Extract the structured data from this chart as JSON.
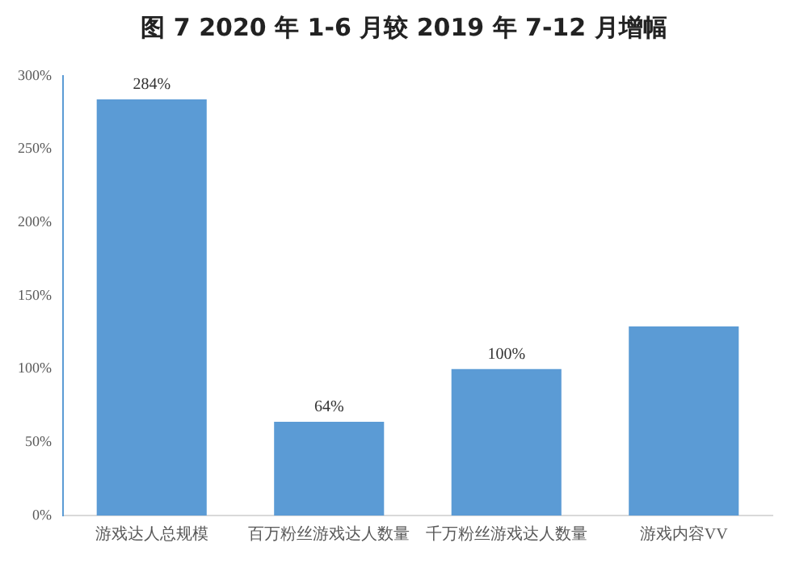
{
  "chart_data": {
    "type": "bar",
    "title": "图 7   2020 年 1-6 月较 2019 年 7-12 月增幅",
    "categories": [
      "游戏达人总规模",
      "百万粉丝游戏达人数量",
      "千万粉丝游戏达人数量",
      "游戏内容VV"
    ],
    "values": [
      284,
      64,
      100,
      129
    ],
    "value_labels": [
      "284%",
      "64%",
      "100%",
      null
    ],
    "color": "#5b9bd5",
    "ylim": [
      0,
      300
    ],
    "yticks": [
      {
        "value": 0,
        "label": "0%"
      },
      {
        "value": 50,
        "label": "50%"
      },
      {
        "value": 100,
        "label": "100%"
      },
      {
        "value": 150,
        "label": "150%"
      },
      {
        "value": 200,
        "label": "200%"
      },
      {
        "value": 250,
        "label": "250%"
      },
      {
        "value": 300,
        "label": "300%"
      }
    ],
    "grid": false,
    "legend": false
  }
}
